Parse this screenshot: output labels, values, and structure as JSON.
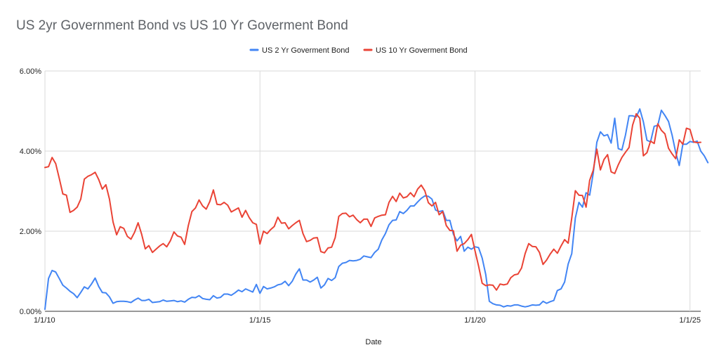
{
  "chart_data": {
    "type": "line",
    "title": "US 2yr Government Bond vs US 10 Yr Goverment Bond",
    "xlabel": "Date",
    "ylabel": "",
    "x_start": "2010-01",
    "x_step": "1 month",
    "xlim": [
      "2010-01",
      "2025-04"
    ],
    "ylim": [
      0,
      6
    ],
    "y_ticks": [
      "0.00%",
      "2.00%",
      "4.00%",
      "6.00%"
    ],
    "x_ticks": [
      {
        "label": "1/1/10",
        "date": "2010-01"
      },
      {
        "label": "1/1/15",
        "date": "2015-01"
      },
      {
        "label": "1/1/20",
        "date": "2020-01"
      },
      {
        "label": "1/1/25",
        "date": "2025-01"
      }
    ],
    "grid": true,
    "legend_position": "top",
    "series": [
      {
        "name": "US 2 Yr Goverment Bond",
        "color": "#4285f4",
        "values": [
          0.05,
          0.82,
          1.02,
          0.98,
          0.82,
          0.65,
          0.58,
          0.5,
          0.44,
          0.34,
          0.47,
          0.61,
          0.56,
          0.68,
          0.83,
          0.62,
          0.47,
          0.46,
          0.36,
          0.2,
          0.24,
          0.25,
          0.25,
          0.24,
          0.22,
          0.28,
          0.33,
          0.27,
          0.27,
          0.3,
          0.22,
          0.23,
          0.24,
          0.28,
          0.25,
          0.26,
          0.27,
          0.24,
          0.26,
          0.23,
          0.3,
          0.35,
          0.34,
          0.39,
          0.32,
          0.3,
          0.29,
          0.39,
          0.33,
          0.35,
          0.43,
          0.43,
          0.4,
          0.46,
          0.53,
          0.49,
          0.56,
          0.52,
          0.48,
          0.67,
          0.45,
          0.62,
          0.56,
          0.58,
          0.61,
          0.66,
          0.68,
          0.75,
          0.64,
          0.75,
          0.93,
          1.06,
          0.78,
          0.78,
          0.73,
          0.78,
          0.85,
          0.58,
          0.66,
          0.82,
          0.77,
          0.84,
          1.12,
          1.2,
          1.22,
          1.27,
          1.26,
          1.27,
          1.3,
          1.38,
          1.36,
          1.34,
          1.47,
          1.55,
          1.78,
          1.94,
          2.16,
          2.27,
          2.28,
          2.49,
          2.44,
          2.52,
          2.63,
          2.63,
          2.73,
          2.82,
          2.88,
          2.87,
          2.8,
          2.53,
          2.49,
          2.51,
          2.27,
          2.27,
          1.92,
          1.76,
          1.87,
          1.5,
          1.6,
          1.55,
          1.61,
          1.59,
          1.33,
          0.92,
          0.25,
          0.19,
          0.16,
          0.15,
          0.11,
          0.14,
          0.13,
          0.16,
          0.16,
          0.13,
          0.11,
          0.13,
          0.16,
          0.15,
          0.16,
          0.25,
          0.2,
          0.24,
          0.27,
          0.52,
          0.56,
          0.73,
          1.18,
          1.44,
          2.33,
          2.72,
          2.6,
          2.96,
          2.9,
          3.45,
          4.22,
          4.48,
          4.38,
          4.41,
          4.2,
          4.82,
          4.06,
          4.03,
          4.4,
          4.88,
          4.88,
          4.85,
          5.05,
          4.73,
          4.27,
          4.23,
          4.62,
          4.64,
          5.02,
          4.89,
          4.74,
          4.4,
          3.97,
          3.64,
          4.17,
          4.17,
          4.24,
          4.22,
          4.25,
          4.0,
          3.88,
          3.71
        ]
      },
      {
        "name": "US 10 Yr Goverment Bond",
        "color": "#ea4335",
        "values": [
          3.59,
          3.61,
          3.84,
          3.69,
          3.32,
          2.93,
          2.9,
          2.47,
          2.52,
          2.6,
          2.8,
          3.3,
          3.37,
          3.41,
          3.47,
          3.29,
          3.05,
          3.16,
          2.8,
          2.23,
          1.91,
          2.11,
          2.07,
          1.87,
          1.8,
          1.97,
          2.21,
          1.92,
          1.56,
          1.64,
          1.47,
          1.55,
          1.63,
          1.69,
          1.61,
          1.76,
          1.98,
          1.88,
          1.85,
          1.67,
          2.14,
          2.49,
          2.58,
          2.78,
          2.63,
          2.55,
          2.74,
          3.03,
          2.67,
          2.66,
          2.72,
          2.65,
          2.48,
          2.53,
          2.58,
          2.35,
          2.52,
          2.34,
          2.21,
          2.17,
          1.68,
          2.0,
          1.94,
          2.04,
          2.12,
          2.35,
          2.2,
          2.21,
          2.06,
          2.14,
          2.21,
          2.27,
          1.94,
          1.74,
          1.77,
          1.83,
          1.84,
          1.49,
          1.46,
          1.58,
          1.6,
          1.84,
          2.37,
          2.44,
          2.45,
          2.36,
          2.4,
          2.29,
          2.21,
          2.3,
          2.3,
          2.12,
          2.33,
          2.37,
          2.4,
          2.41,
          2.72,
          2.87,
          2.74,
          2.95,
          2.83,
          2.86,
          2.96,
          2.86,
          3.05,
          3.15,
          3.01,
          2.71,
          2.63,
          2.72,
          2.41,
          2.49,
          2.14,
          2.02,
          2.01,
          1.5,
          1.65,
          1.69,
          1.79,
          1.92,
          1.51,
          1.13,
          0.7,
          0.64,
          0.66,
          0.65,
          0.53,
          0.68,
          0.66,
          0.68,
          0.84,
          0.91,
          0.93,
          1.08,
          1.44,
          1.69,
          1.62,
          1.61,
          1.47,
          1.17,
          1.28,
          1.43,
          1.55,
          1.45,
          1.63,
          1.79,
          1.7,
          2.33,
          3.01,
          2.9,
          2.89,
          2.6,
          3.27,
          3.52,
          4.05,
          3.53,
          3.79,
          3.91,
          3.48,
          3.44,
          3.66,
          3.84,
          3.97,
          4.09,
          4.65,
          4.93,
          4.82,
          3.88,
          3.96,
          4.25,
          4.19,
          4.68,
          4.52,
          4.43,
          4.07,
          3.93,
          3.81,
          4.28,
          4.17,
          4.57,
          4.54,
          4.23,
          4.21,
          4.22
        ]
      }
    ]
  }
}
